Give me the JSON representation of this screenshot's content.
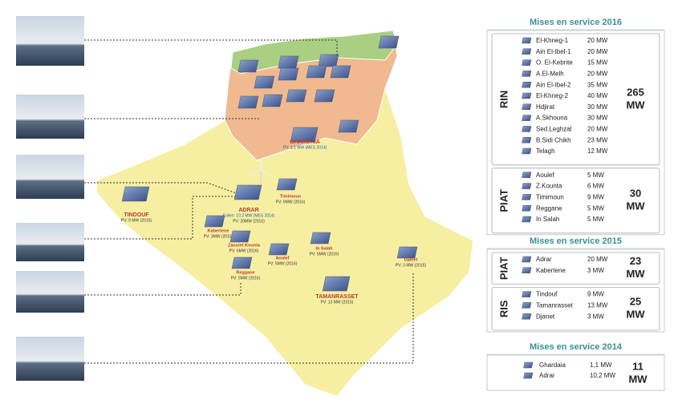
{
  "map_labels": [
    {
      "name": "TINDOUF",
      "details": [
        "PV: 9 MW (2015)"
      ]
    },
    {
      "name": "ADRAR",
      "details": [
        "Eolien: 10.2 MW (MES 2014)",
        "PV: 20MW (2015)"
      ]
    },
    {
      "name": "Timimoun",
      "details": [
        "PV: 9MW (2016)"
      ]
    },
    {
      "name": "Kabertene",
      "details": [
        "PV: 3MW (2015)"
      ]
    },
    {
      "name": "Zaouiet Kounta",
      "details": [
        "PV: 6MW (2016)"
      ]
    },
    {
      "name": "Aoulef",
      "details": [
        "PV: 5MW (2016)"
      ]
    },
    {
      "name": "In Salah",
      "details": [
        "PV: 5MW (2016)"
      ]
    },
    {
      "name": "Reggane",
      "details": [
        "PV: 5MW (2016)"
      ]
    },
    {
      "name": "Djanet",
      "details": [
        "PV: 3 MW (2015)"
      ]
    },
    {
      "name": "TAMANRASSET",
      "details": [
        "PV: 13 MW (2015)"
      ]
    },
    {
      "name": "GHARDAIA",
      "details": [
        "PV: 1.1 MW (MES 2014)"
      ]
    }
  ],
  "panels": [
    {
      "title": "Mises en service  2016",
      "groups": [
        {
          "label": "RIN",
          "rows": [
            [
              "El-Khneg-1",
              "20 MW"
            ],
            [
              "Ain El-Ibel-1",
              "20 MW"
            ],
            [
              "O. El-Kebrite",
              "15 MW"
            ],
            [
              "A.El-Melh",
              "20 MW"
            ],
            [
              "Ain El-Ibel-2",
              "35 MW"
            ],
            [
              "El-Khneg-2",
              "40 MW"
            ],
            [
              "Hdjirat",
              "30 MW"
            ],
            [
              "A.Skhouna",
              "30 MW"
            ],
            [
              "Sed.Leghzal",
              "20 MW"
            ],
            [
              "B.Sidi Chikh",
              "23 MW"
            ],
            [
              "Telagh",
              "12 MW"
            ]
          ],
          "total": [
            "265",
            "MW"
          ]
        },
        {
          "label": "PIAT",
          "rows": [
            [
              "Aoulef",
              "5 MW"
            ],
            [
              "Z.Kounta",
              "6 MW"
            ],
            [
              "Timimoun",
              "9 MW"
            ],
            [
              "Reggane",
              "5 MW"
            ],
            [
              "In Salah",
              "5 MW"
            ]
          ],
          "total": [
            "30",
            "MW"
          ]
        }
      ]
    },
    {
      "title": "Mises en service  2015",
      "groups": [
        {
          "label": "PIAT",
          "rows": [
            [
              "Adrar",
              "20 MW"
            ],
            [
              "Kabertene",
              "3 MW"
            ]
          ],
          "total": [
            "23",
            "MW"
          ]
        },
        {
          "label": "RIS",
          "rows": [
            [
              "Tindouf",
              "9 MW"
            ],
            [
              "Tamanrasset",
              "13 MW"
            ],
            [
              "Djanet",
              "3 MW"
            ]
          ],
          "total": [
            "25",
            "MW"
          ]
        }
      ]
    },
    {
      "title": "Mises en service  2014",
      "groups": [
        {
          "label": "",
          "rows": [
            [
              "Ghardaia",
              "1,1 MW"
            ],
            [
              "Adrar",
              "10,2 MW"
            ]
          ],
          "total": [
            "11",
            "MW"
          ]
        }
      ]
    }
  ]
}
